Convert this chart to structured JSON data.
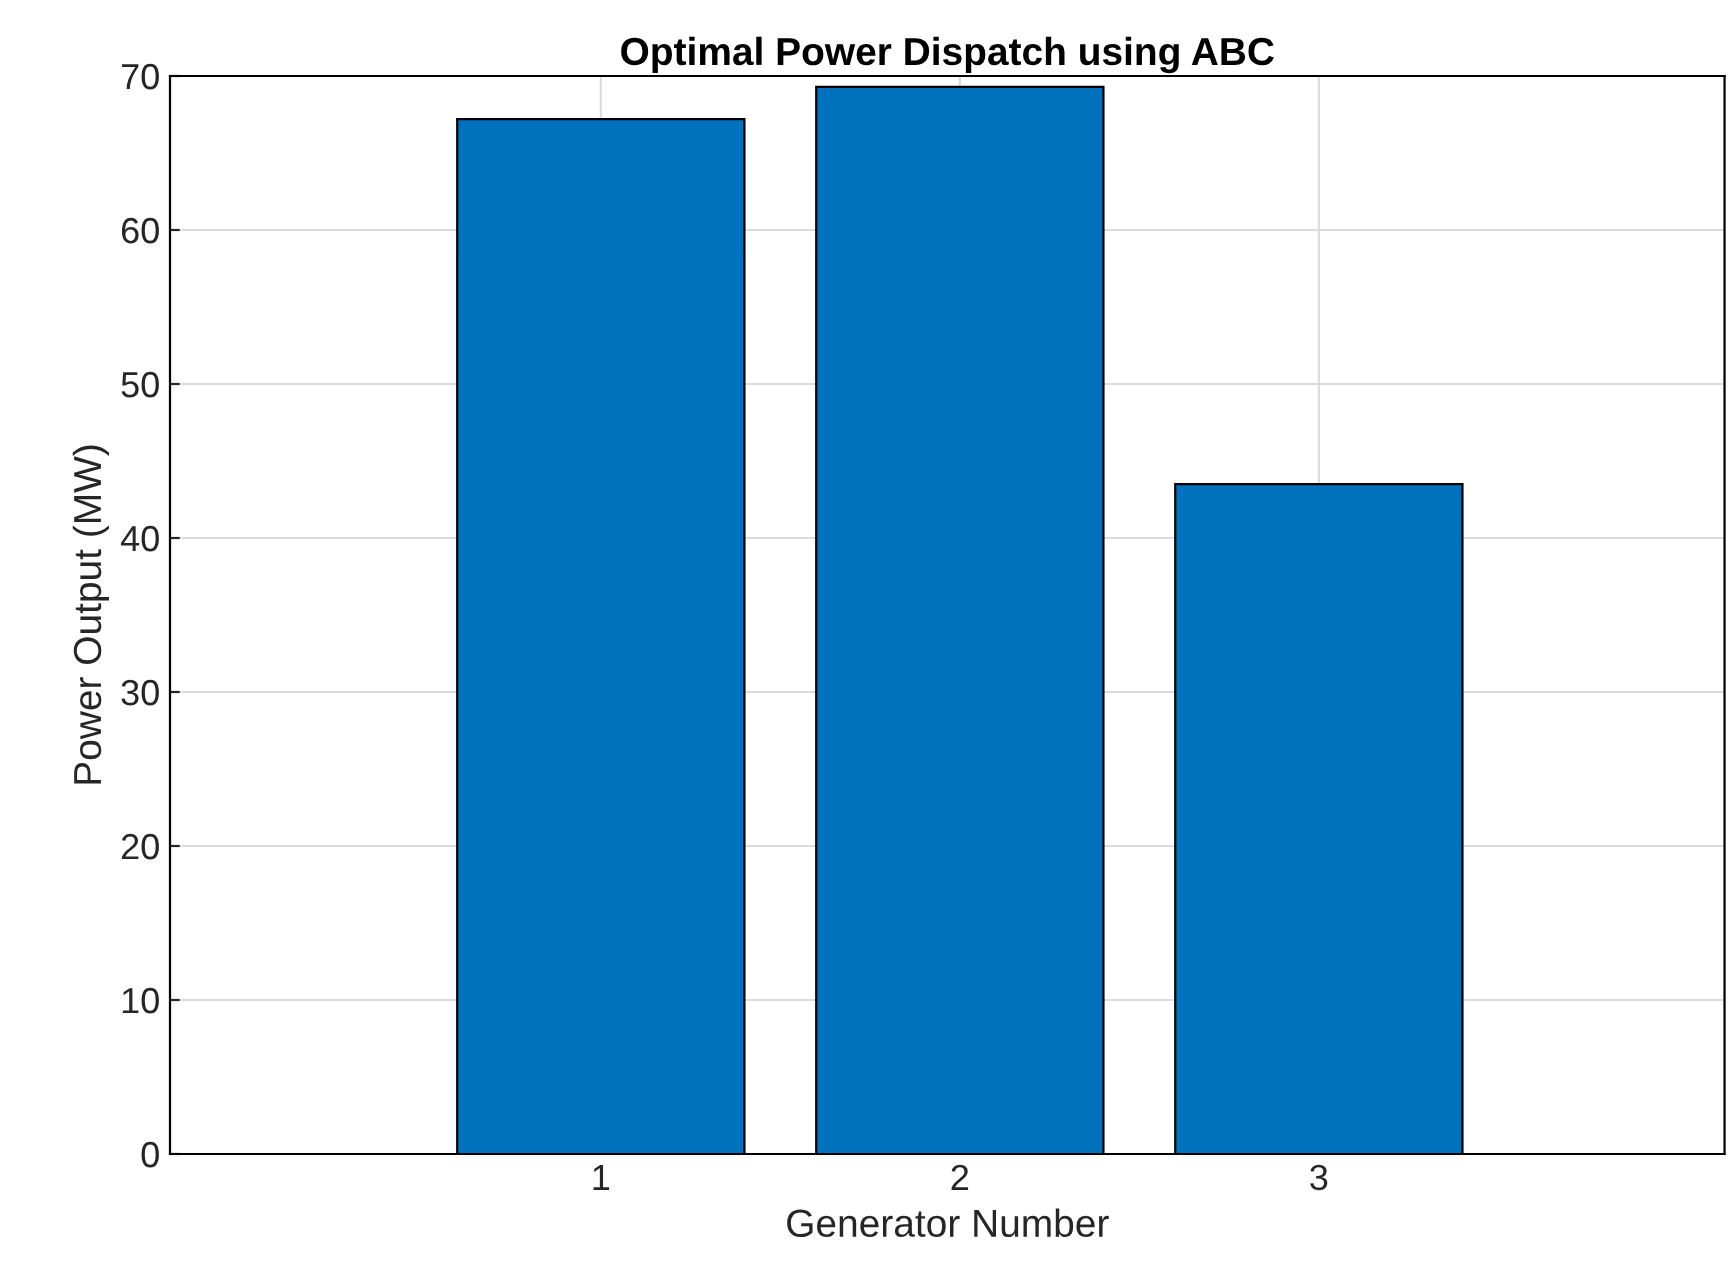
{
  "chart_data": {
    "type": "bar",
    "title": "Optimal Power Dispatch using ABC",
    "xlabel": "Generator Number",
    "ylabel": "Power Output (MW)",
    "categories": [
      "1",
      "2",
      "3"
    ],
    "values": [
      67.2,
      69.3,
      43.5
    ],
    "color": "#0072bd",
    "ylim": [
      0,
      70
    ],
    "yticks": [
      0,
      10,
      20,
      30,
      40,
      50,
      60,
      70
    ],
    "grid": true
  }
}
